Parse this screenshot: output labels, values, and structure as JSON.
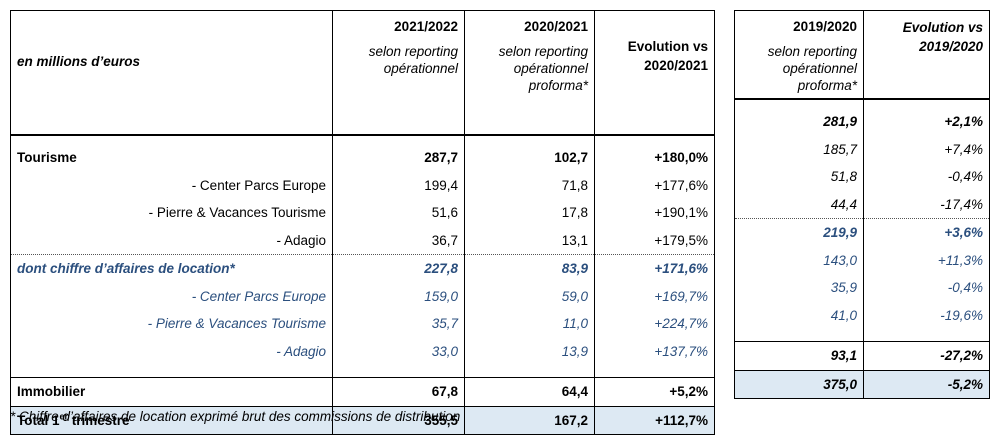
{
  "header": {
    "units": "en millions d’euros",
    "col1_year": "2021/2022",
    "col1_sub": "selon reporting opérationnel",
    "col2_year": "2020/2021",
    "col2_sub": "selon reporting opérationnel proforma*",
    "col3_title": "Evolution vs 2020/2021",
    "col4_year": "2019/2020",
    "col4_sub": "selon reporting opérationnel proforma*",
    "col5_title": "Evolution vs 2019/2020"
  },
  "rows": [
    {
      "label": "Tourisme",
      "v1": "287,7",
      "v2": "102,7",
      "evo": "+180,0%",
      "v4": "281,9",
      "evo2": "+2,1%"
    },
    {
      "label": "- Center Parcs Europe",
      "v1": "199,4",
      "v2": "71,8",
      "evo": "+177,6%",
      "v4": "185,7",
      "evo2": "+7,4%"
    },
    {
      "label": "- Pierre & Vacances Tourisme",
      "v1": "51,6",
      "v2": "17,8",
      "evo": "+190,1%",
      "v4": "51,8",
      "evo2": "-0,4%"
    },
    {
      "label": "- Adagio",
      "v1": "36,7",
      "v2": "13,1",
      "evo": "+179,5%",
      "v4": "44,4",
      "evo2": "-17,4%"
    },
    {
      "label": "dont chiffre d’affaires de location*",
      "v1": "227,8",
      "v2": "83,9",
      "evo": "+171,6%",
      "v4": "219,9",
      "evo2": "+3,6%"
    },
    {
      "label": "- Center Parcs Europe",
      "v1": "159,0",
      "v2": "59,0",
      "evo": "+169,7%",
      "v4": "143,0",
      "evo2": "+11,3%"
    },
    {
      "label": "- Pierre & Vacances Tourisme",
      "v1": "35,7",
      "v2": "11,0",
      "evo": "+224,7%",
      "v4": "35,9",
      "evo2": "-0,4%"
    },
    {
      "label": "- Adagio",
      "v1": "33,0",
      "v2": "13,9",
      "evo": "+137,7%",
      "v4": "41,0",
      "evo2": "-19,6%"
    },
    {
      "label": "Immobilier",
      "v1": "67,8",
      "v2": "64,4",
      "evo": "+5,2%",
      "v4": "93,1",
      "evo2": "-27,2%"
    },
    {
      "label_main": "Total 1",
      "label_sup": "er",
      "label_rest": " trimestre",
      "v1": "355,5",
      "v2": "167,2",
      "evo": "+112,7%",
      "v4": "375,0",
      "evo2": "-5,2%"
    }
  ],
  "footnote": "* Chiffre d’affaires de location exprimé brut des commissions de distribution",
  "colors": {
    "blue_text": "#2b4f7e",
    "total_bg": "#dde9f3"
  }
}
